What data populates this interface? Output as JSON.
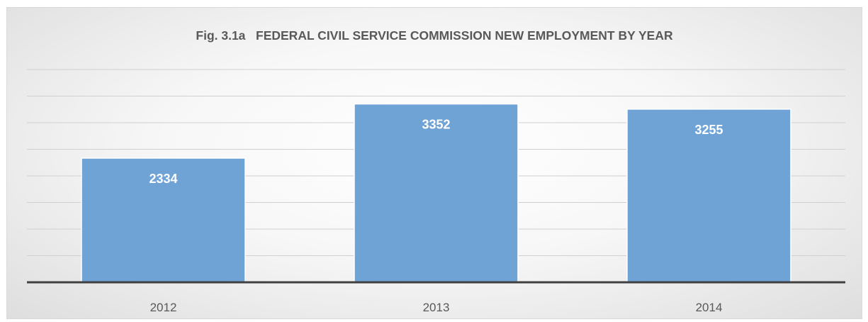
{
  "chart_data": {
    "type": "bar",
    "title": "Fig. 3.1a   FEDERAL CIVIL SERVICE COMMISSION NEW EMPLOYMENT BY YEAR",
    "categories": [
      "2012",
      "2013",
      "2014"
    ],
    "values": [
      2334,
      3352,
      3255
    ],
    "data_labels": [
      "2334",
      "3352",
      "3255"
    ],
    "xlabel": "",
    "ylabel": "",
    "ylim": [
      0,
      4000
    ],
    "grid": true,
    "legend": "none",
    "colors": {
      "bar": "#6fa3d6",
      "axis": "#404040",
      "grid": "#d0d0d0",
      "title": "#595959",
      "data_label": "#ffffff"
    }
  }
}
